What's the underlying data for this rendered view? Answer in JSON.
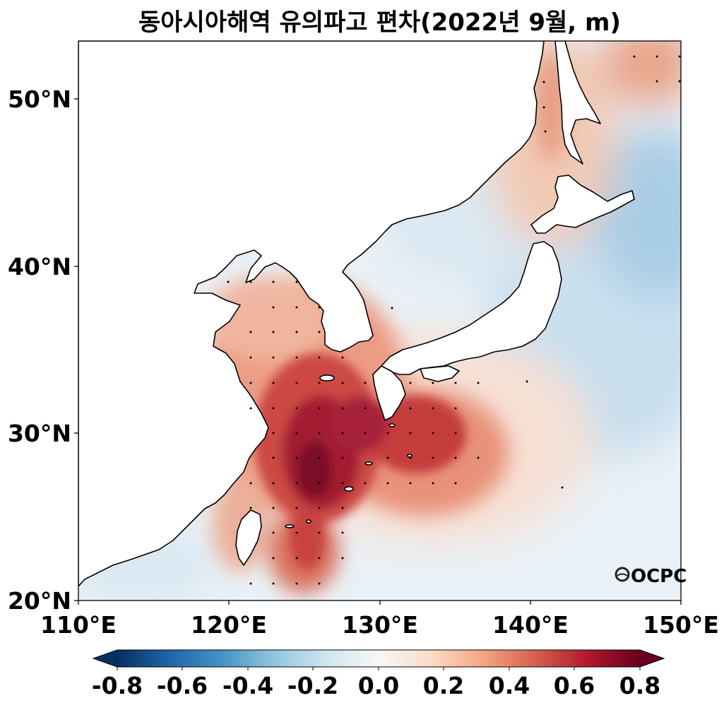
{
  "title": "동아시아해역 유의파고 편차(2022년 9월, m)",
  "map": {
    "region": "East Asian seas",
    "extent": {
      "lon": [
        110,
        150
      ],
      "lat": [
        20,
        53.5
      ]
    },
    "lon_ticks": [
      "110°E",
      "120°E",
      "130°E",
      "140°E",
      "150°E"
    ],
    "lat_ticks": [
      "20°N",
      "30°N",
      "40°N",
      "50°N"
    ],
    "land_color": "#ffffff",
    "coastline_color": "#000000"
  },
  "colorbar": {
    "colormap": "RdBu_r",
    "range": [
      -0.8,
      0.8
    ],
    "extend": "both",
    "tick_labels": [
      "-0.8",
      "-0.6",
      "-0.4",
      "-0.2",
      "0.0",
      "0.2",
      "0.4",
      "0.6",
      "0.8"
    ],
    "colors": [
      "#053061",
      "#2166ac",
      "#4393c3",
      "#92c5de",
      "#d1e5f0",
      "#f7f7f7",
      "#fddbc7",
      "#f4a582",
      "#d6604d",
      "#b2182b",
      "#67001f"
    ]
  },
  "logo": {
    "text": "OCPC"
  }
}
